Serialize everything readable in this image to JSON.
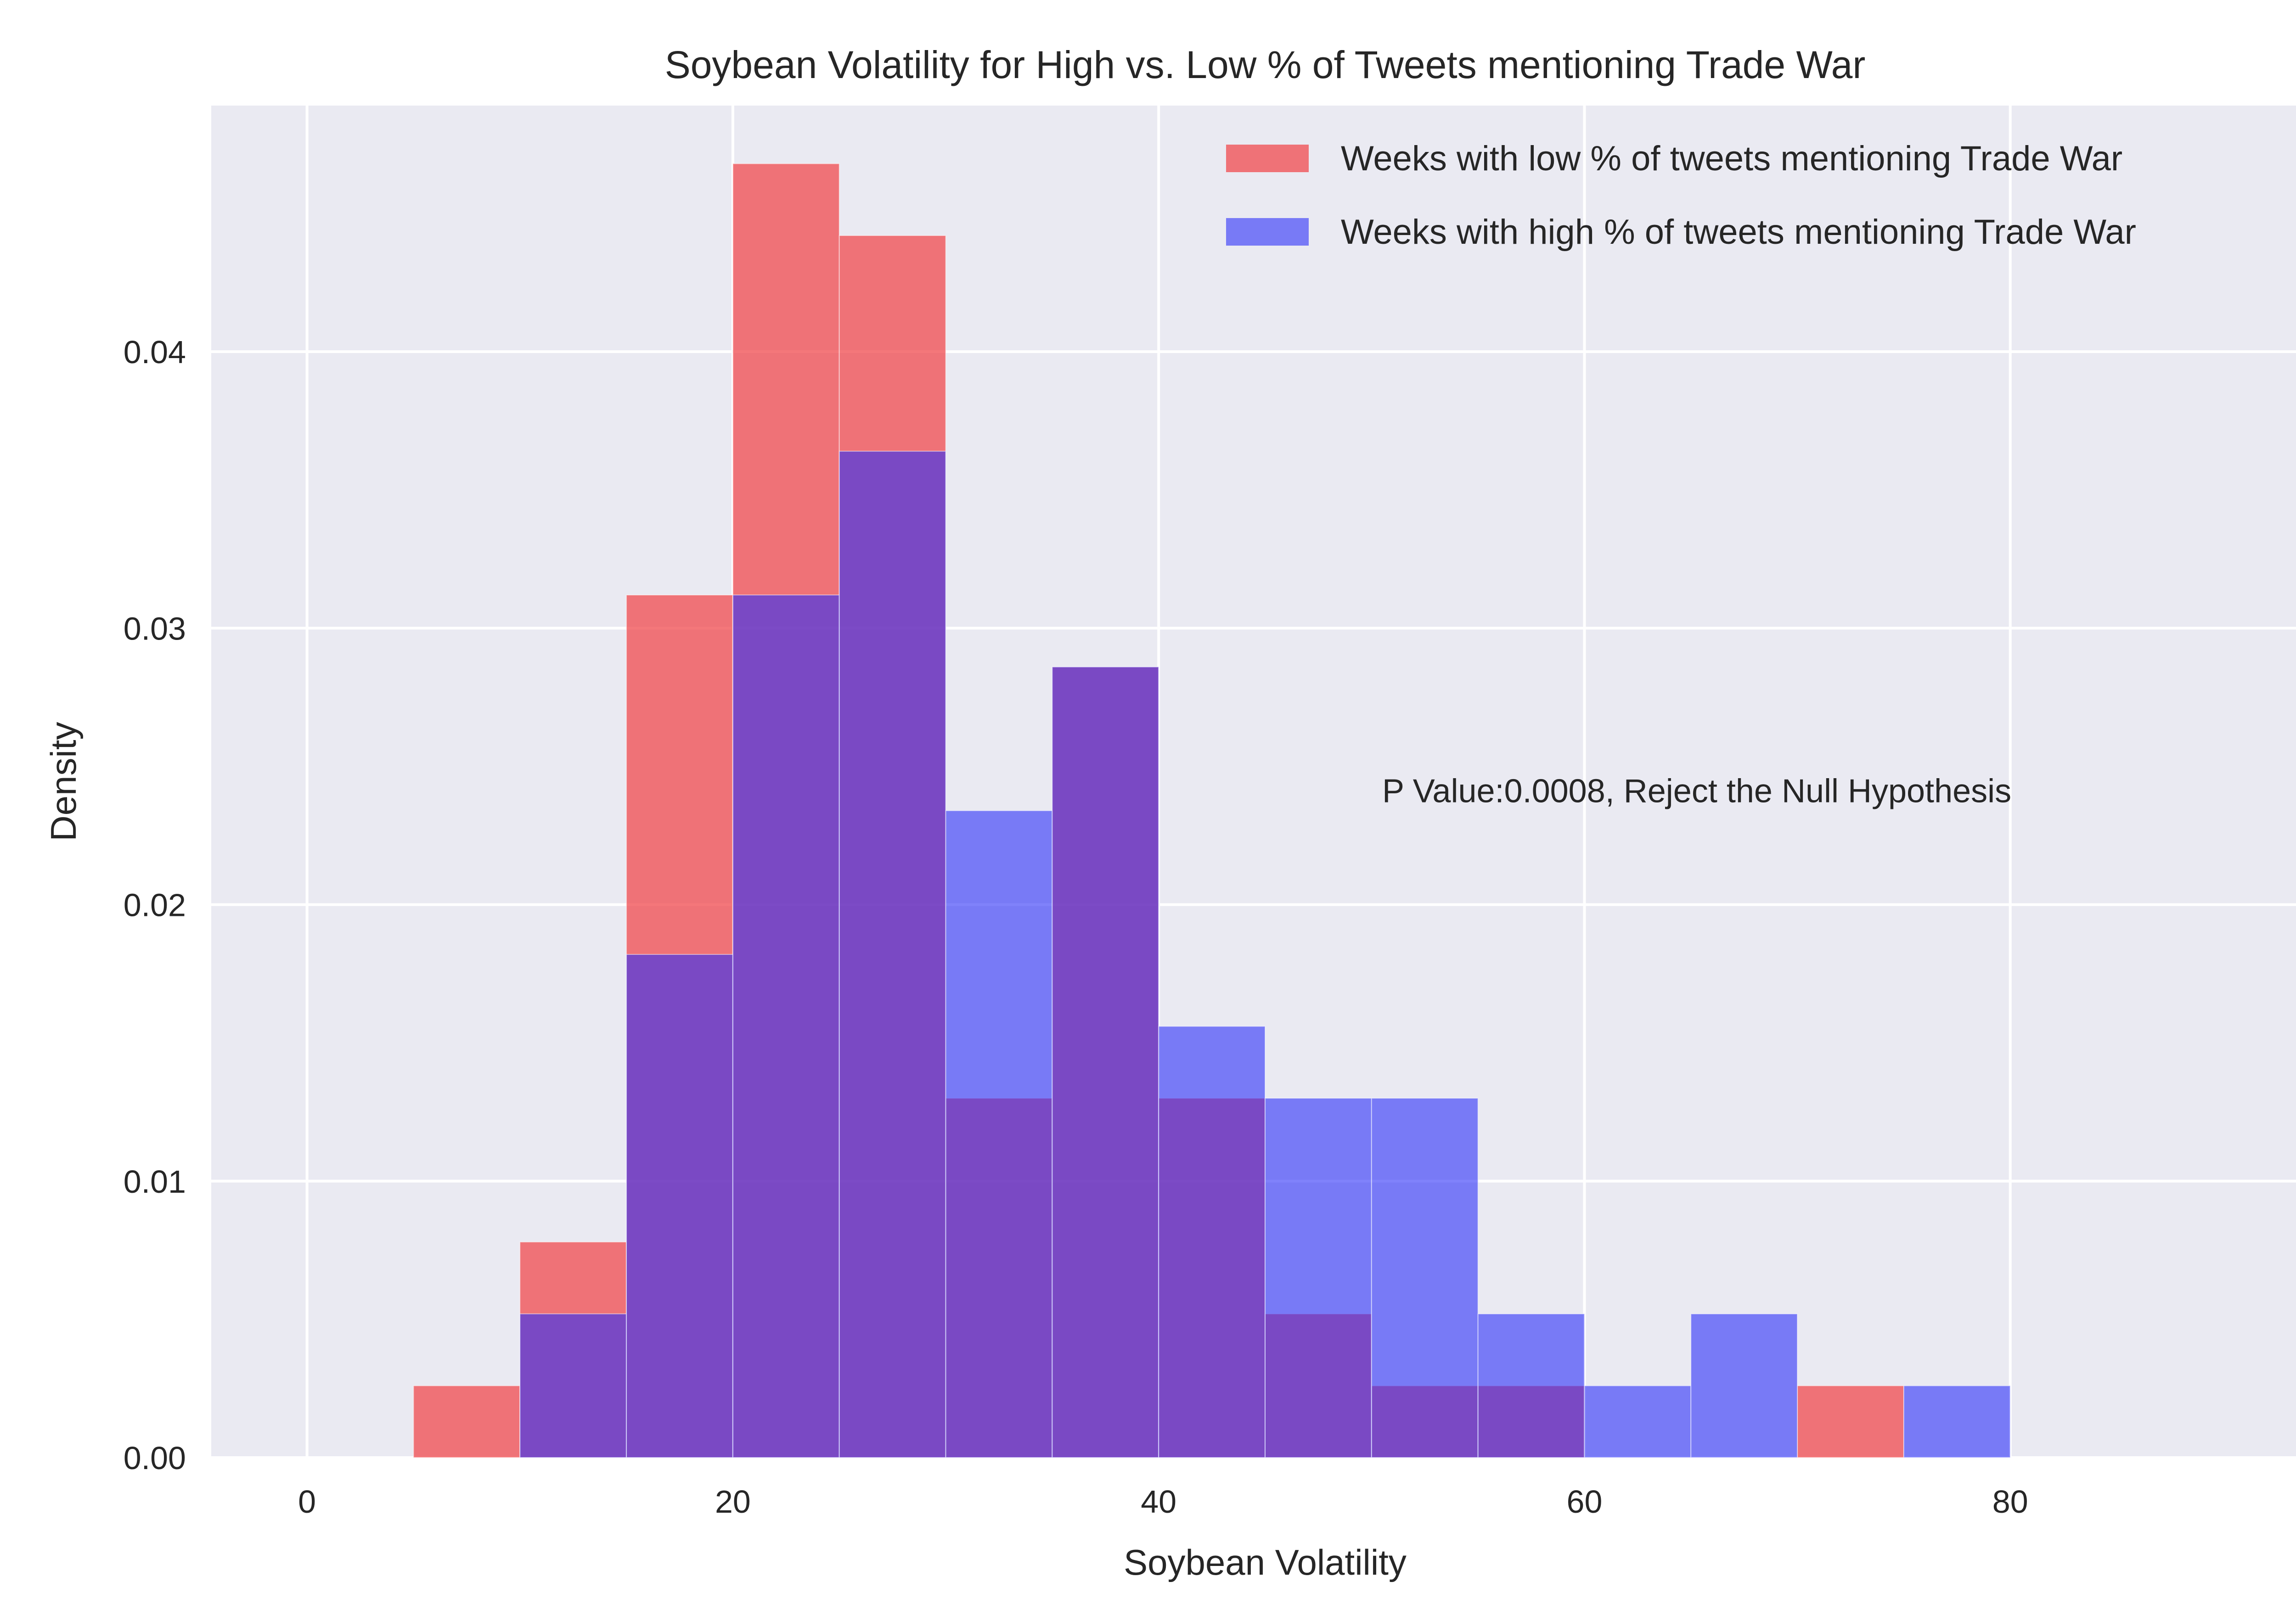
{
  "chart_data": {
    "type": "bar",
    "title": "Soybean Volatility for High vs. Low % of Tweets mentioning Trade War",
    "xlabel": "Soybean Volatility",
    "ylabel": "Density",
    "xlim": [
      -4.5,
      94.5
    ],
    "ylim": [
      0,
      0.0489
    ],
    "xticks": [
      0,
      20,
      40,
      60,
      80
    ],
    "yticks": [
      0.0,
      0.01,
      0.02,
      0.03,
      0.04
    ],
    "xtick_labels": [
      "0",
      "20",
      "40",
      "60",
      "80"
    ],
    "ytick_labels": [
      "0.00",
      "0.01",
      "0.02",
      "0.03",
      "0.04"
    ],
    "bin_edges": [
      0,
      5,
      10,
      15,
      20,
      25,
      30,
      35,
      40,
      45,
      50,
      55,
      60,
      65,
      70,
      75,
      80,
      85,
      90
    ],
    "grid": true,
    "legend_position": "top-right",
    "annotation": "P Value:0.0008, Reject the Null Hypothesis",
    "annotation_at": {
      "x": 50.5,
      "y": 0.0237
    },
    "series": [
      {
        "name": "Weeks with low % of tweets mentioning Trade War",
        "color": "#f0494e",
        "opacity": 0.75,
        "values": [
          0,
          0.0026,
          0.0078,
          0.0312,
          0.0468,
          0.0442,
          0.013,
          0.0286,
          0.013,
          0.0052,
          0.0026,
          0.0026,
          0,
          0,
          0.0026,
          0,
          0,
          0
        ]
      },
      {
        "name": "Weeks with high % of tweets mentioning Trade War",
        "color": "#2b2ef8",
        "opacity": 0.6,
        "values": [
          0,
          0,
          0.0052,
          0.0182,
          0.0312,
          0.0364,
          0.0234,
          0.0286,
          0.0156,
          0.013,
          0.013,
          0.0052,
          0.0026,
          0.0052,
          0,
          0.0026,
          0,
          0
        ]
      }
    ]
  }
}
